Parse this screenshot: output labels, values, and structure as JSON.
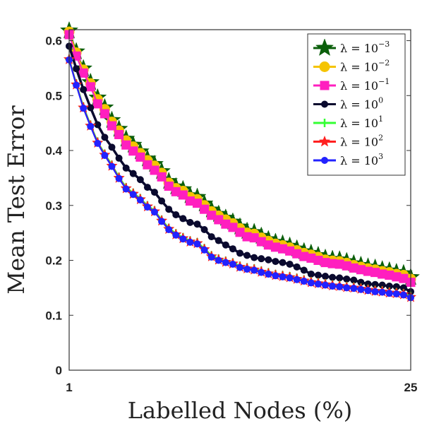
{
  "chart_data": {
    "type": "line",
    "xlabel": "Labelled Nodes (%)",
    "ylabel": "Mean Test Error",
    "xlim": [
      1,
      25
    ],
    "ylim": [
      0,
      0.62
    ],
    "x_ticks": [
      1,
      25
    ],
    "y_ticks": [
      0,
      0.1,
      0.2,
      0.3,
      0.4,
      0.5,
      0.6
    ],
    "y_tick_labels": [
      "0",
      "0.1",
      "0.2",
      "0.3",
      "0.4",
      "0.5",
      "0.6"
    ],
    "grid": false,
    "legend_position": "top-right",
    "x": [
      1,
      1.5,
      2,
      2.5,
      3,
      3.5,
      4,
      4.5,
      5,
      5.5,
      6,
      6.5,
      7,
      7.5,
      8,
      8.5,
      9,
      9.5,
      10,
      10.5,
      11,
      11.5,
      12,
      12.5,
      13,
      13.5,
      14,
      14.5,
      15,
      15.5,
      16,
      16.5,
      17,
      17.5,
      18,
      18.5,
      19,
      19.5,
      20,
      20.5,
      21,
      21.5,
      22,
      22.5,
      23,
      23.5,
      24,
      24.5,
      25
    ],
    "series": [
      {
        "name": "λ = 10^-3",
        "base": "λ = 10",
        "exp": "−3",
        "color": "#0b5f0b",
        "marker": "star-big",
        "values": [
          0.618,
          0.58,
          0.549,
          0.524,
          0.496,
          0.478,
          0.455,
          0.439,
          0.421,
          0.41,
          0.398,
          0.385,
          0.375,
          0.362,
          0.344,
          0.334,
          0.329,
          0.318,
          0.315,
          0.303,
          0.292,
          0.284,
          0.277,
          0.27,
          0.261,
          0.253,
          0.251,
          0.244,
          0.238,
          0.233,
          0.23,
          0.226,
          0.221,
          0.216,
          0.213,
          0.209,
          0.204,
          0.202,
          0.201,
          0.198,
          0.194,
          0.191,
          0.188,
          0.186,
          0.183,
          0.181,
          0.178,
          0.176,
          0.169
        ]
      },
      {
        "name": "λ = 10^-2",
        "base": "λ = 10",
        "exp": "−2",
        "color": "#f5c400",
        "marker": "circle-big",
        "values": [
          0.616,
          0.578,
          0.547,
          0.522,
          0.493,
          0.475,
          0.452,
          0.436,
          0.418,
          0.407,
          0.395,
          0.382,
          0.372,
          0.359,
          0.341,
          0.331,
          0.326,
          0.315,
          0.311,
          0.3,
          0.289,
          0.281,
          0.274,
          0.267,
          0.258,
          0.25,
          0.248,
          0.241,
          0.235,
          0.23,
          0.227,
          0.223,
          0.218,
          0.213,
          0.21,
          0.206,
          0.201,
          0.199,
          0.198,
          0.195,
          0.191,
          0.188,
          0.185,
          0.183,
          0.18,
          0.178,
          0.175,
          0.173,
          0.166
        ]
      },
      {
        "name": "λ = 10^-1",
        "base": "λ = 10",
        "exp": "−1",
        "color": "#ff1fbf",
        "marker": "square",
        "values": [
          0.611,
          0.572,
          0.541,
          0.516,
          0.485,
          0.467,
          0.445,
          0.429,
          0.41,
          0.399,
          0.388,
          0.374,
          0.364,
          0.352,
          0.335,
          0.325,
          0.319,
          0.308,
          0.304,
          0.293,
          0.282,
          0.274,
          0.266,
          0.26,
          0.251,
          0.243,
          0.241,
          0.234,
          0.228,
          0.224,
          0.221,
          0.217,
          0.212,
          0.207,
          0.204,
          0.2,
          0.196,
          0.194,
          0.193,
          0.19,
          0.186,
          0.183,
          0.18,
          0.178,
          0.175,
          0.173,
          0.17,
          0.167,
          0.16
        ]
      },
      {
        "name": "λ = 10^0",
        "base": "λ = 10",
        "exp": "0",
        "color": "#0a0a2e",
        "marker": "circle",
        "values": [
          0.59,
          0.549,
          0.511,
          0.478,
          0.447,
          0.424,
          0.406,
          0.386,
          0.368,
          0.358,
          0.347,
          0.333,
          0.324,
          0.308,
          0.293,
          0.283,
          0.276,
          0.269,
          0.266,
          0.256,
          0.243,
          0.236,
          0.228,
          0.221,
          0.213,
          0.209,
          0.205,
          0.203,
          0.201,
          0.198,
          0.196,
          0.193,
          0.188,
          0.182,
          0.175,
          0.173,
          0.171,
          0.169,
          0.168,
          0.166,
          0.164,
          0.16,
          0.157,
          0.156,
          0.155,
          0.153,
          0.152,
          0.15,
          0.143
        ]
      },
      {
        "name": "λ = 10^1",
        "base": "λ = 10",
        "exp": "1",
        "color": "#33ff33",
        "marker": "plus",
        "values": [
          0.567,
          0.522,
          0.48,
          0.447,
          0.416,
          0.394,
          0.374,
          0.352,
          0.333,
          0.323,
          0.313,
          0.3,
          0.291,
          0.274,
          0.259,
          0.249,
          0.242,
          0.236,
          0.233,
          0.222,
          0.209,
          0.203,
          0.199,
          0.196,
          0.19,
          0.187,
          0.185,
          0.181,
          0.178,
          0.175,
          0.173,
          0.171,
          0.168,
          0.165,
          0.162,
          0.16,
          0.158,
          0.156,
          0.155,
          0.153,
          0.152,
          0.15,
          0.148,
          0.146,
          0.145,
          0.143,
          0.142,
          0.14,
          0.135
        ]
      },
      {
        "name": "λ = 10^2",
        "base": "λ = 10",
        "exp": "2",
        "color": "#ff2020",
        "marker": "star",
        "values": [
          0.566,
          0.52,
          0.478,
          0.445,
          0.414,
          0.392,
          0.372,
          0.35,
          0.331,
          0.321,
          0.311,
          0.298,
          0.289,
          0.272,
          0.257,
          0.247,
          0.24,
          0.234,
          0.231,
          0.22,
          0.207,
          0.201,
          0.197,
          0.194,
          0.188,
          0.185,
          0.183,
          0.179,
          0.176,
          0.173,
          0.171,
          0.169,
          0.166,
          0.163,
          0.16,
          0.158,
          0.156,
          0.154,
          0.153,
          0.151,
          0.15,
          0.148,
          0.146,
          0.144,
          0.143,
          0.141,
          0.14,
          0.138,
          0.133
        ]
      },
      {
        "name": "λ = 10^3",
        "base": "λ = 10",
        "exp": "3",
        "color": "#2222ff",
        "marker": "circle",
        "values": [
          0.565,
          0.519,
          0.477,
          0.444,
          0.413,
          0.391,
          0.371,
          0.349,
          0.33,
          0.32,
          0.31,
          0.297,
          0.288,
          0.271,
          0.256,
          0.246,
          0.239,
          0.233,
          0.23,
          0.219,
          0.206,
          0.2,
          0.196,
          0.193,
          0.187,
          0.184,
          0.182,
          0.178,
          0.175,
          0.172,
          0.17,
          0.168,
          0.165,
          0.162,
          0.159,
          0.157,
          0.155,
          0.153,
          0.152,
          0.15,
          0.149,
          0.147,
          0.145,
          0.143,
          0.142,
          0.14,
          0.139,
          0.137,
          0.132
        ]
      }
    ]
  }
}
